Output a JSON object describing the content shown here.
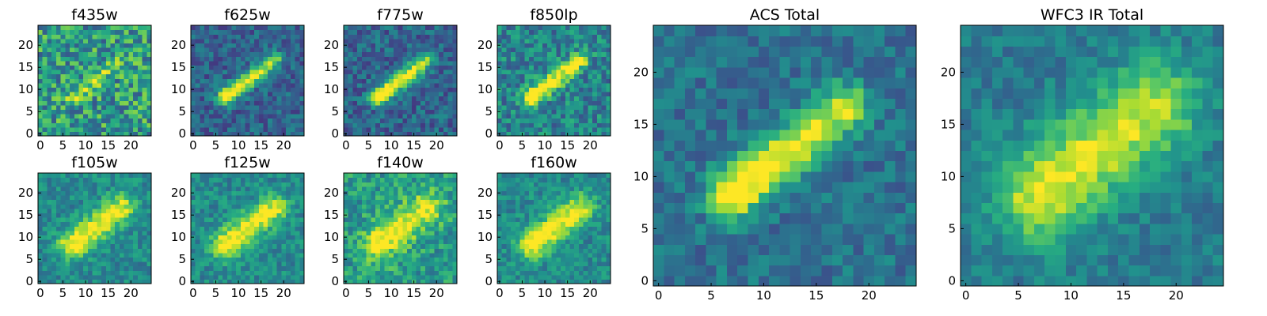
{
  "chart_data": [
    {
      "type": "heatmap",
      "title": "f435w",
      "xticks": [
        "0",
        "5",
        "10",
        "15",
        "20"
      ],
      "yticks": [
        "0",
        "5",
        "10",
        "15",
        "20"
      ],
      "xlim": [
        0,
        24
      ],
      "ylim": [
        0,
        24
      ],
      "colormap": "viridis",
      "grid": false
    },
    {
      "type": "heatmap",
      "title": "f625w",
      "xticks": [
        "0",
        "5",
        "10",
        "15",
        "20"
      ],
      "yticks": [
        "0",
        "5",
        "10",
        "15",
        "20"
      ],
      "xlim": [
        0,
        24
      ],
      "ylim": [
        0,
        24
      ],
      "colormap": "viridis",
      "grid": false
    },
    {
      "type": "heatmap",
      "title": "f775w",
      "xticks": [
        "0",
        "5",
        "10",
        "15",
        "20"
      ],
      "yticks": [
        "0",
        "5",
        "10",
        "15",
        "20"
      ],
      "xlim": [
        0,
        24
      ],
      "ylim": [
        0,
        24
      ],
      "colormap": "viridis",
      "grid": false
    },
    {
      "type": "heatmap",
      "title": "f850lp",
      "xticks": [
        "0",
        "5",
        "10",
        "15",
        "20"
      ],
      "yticks": [
        "0",
        "5",
        "10",
        "15",
        "20"
      ],
      "xlim": [
        0,
        24
      ],
      "ylim": [
        0,
        24
      ],
      "colormap": "viridis",
      "grid": false
    },
    {
      "type": "heatmap",
      "title": "f105w",
      "xticks": [
        "0",
        "5",
        "10",
        "15",
        "20"
      ],
      "yticks": [
        "0",
        "5",
        "10",
        "15",
        "20"
      ],
      "xlim": [
        0,
        24
      ],
      "ylim": [
        0,
        24
      ],
      "colormap": "viridis",
      "grid": false
    },
    {
      "type": "heatmap",
      "title": "f125w",
      "xticks": [
        "0",
        "5",
        "10",
        "15",
        "20"
      ],
      "yticks": [
        "0",
        "5",
        "10",
        "15",
        "20"
      ],
      "xlim": [
        0,
        24
      ],
      "ylim": [
        0,
        24
      ],
      "colormap": "viridis",
      "grid": false
    },
    {
      "type": "heatmap",
      "title": "f140w",
      "xticks": [
        "0",
        "5",
        "10",
        "15",
        "20"
      ],
      "yticks": [
        "0",
        "5",
        "10",
        "15",
        "20"
      ],
      "xlim": [
        0,
        24
      ],
      "ylim": [
        0,
        24
      ],
      "colormap": "viridis",
      "grid": false
    },
    {
      "type": "heatmap",
      "title": "f160w",
      "xticks": [
        "0",
        "5",
        "10",
        "15",
        "20"
      ],
      "yticks": [
        "0",
        "5",
        "10",
        "15",
        "20"
      ],
      "xlim": [
        0,
        24
      ],
      "ylim": [
        0,
        24
      ],
      "colormap": "viridis",
      "grid": false
    },
    {
      "type": "heatmap",
      "title": "ACS Total",
      "xticks": [
        "0",
        "5",
        "10",
        "15",
        "20"
      ],
      "yticks": [
        "0",
        "5",
        "10",
        "15",
        "20"
      ],
      "xlim": [
        0,
        24
      ],
      "ylim": [
        0,
        24
      ],
      "colormap": "viridis",
      "grid": false
    },
    {
      "type": "heatmap",
      "title": "WFC3 IR Total",
      "xticks": [
        "0",
        "5",
        "10",
        "15",
        "20"
      ],
      "yticks": [
        "0",
        "5",
        "10",
        "15",
        "20"
      ],
      "xlim": [
        0,
        24
      ],
      "ylim": [
        0,
        24
      ],
      "colormap": "viridis",
      "grid": false
    }
  ]
}
